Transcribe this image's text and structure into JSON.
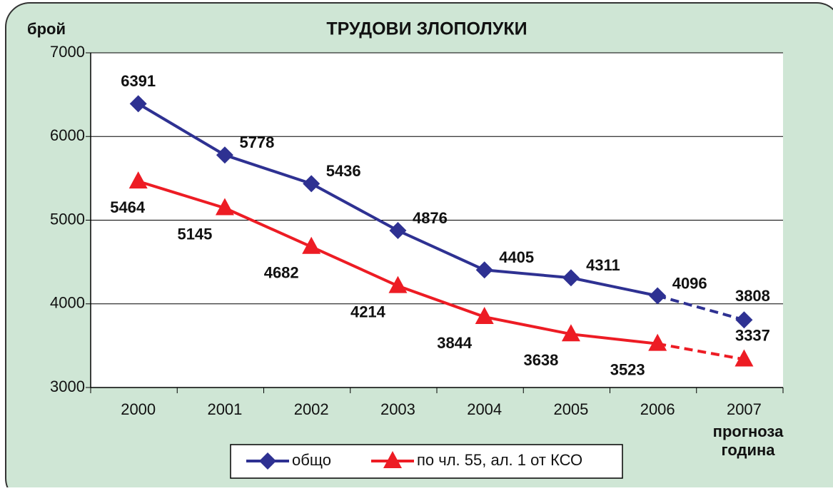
{
  "chart_data": {
    "type": "line",
    "title": "ТРУДОВИ ЗЛОПОЛУКИ",
    "ylabel": "брой",
    "xlabel": "година",
    "annotation": "прогноза",
    "categories": [
      "2000",
      "2001",
      "2002",
      "2003",
      "2004",
      "2005",
      "2006",
      "2007"
    ],
    "series": [
      {
        "name": "общо",
        "color": "#2e3192",
        "marker": "diamond",
        "values": [
          6391,
          5778,
          5436,
          4876,
          4405,
          4311,
          4096,
          3808
        ]
      },
      {
        "name": "по чл. 55, ал. 1 от КСО",
        "color": "#ed1c24",
        "marker": "triangle",
        "values": [
          5464,
          5145,
          4682,
          4214,
          3844,
          3638,
          3523,
          3337
        ]
      }
    ],
    "dashed_from_index": 6,
    "ylim": [
      3000,
      7000
    ],
    "yticks": [
      3000,
      4000,
      5000,
      6000,
      7000
    ],
    "grid": true,
    "legend": "bottom"
  }
}
